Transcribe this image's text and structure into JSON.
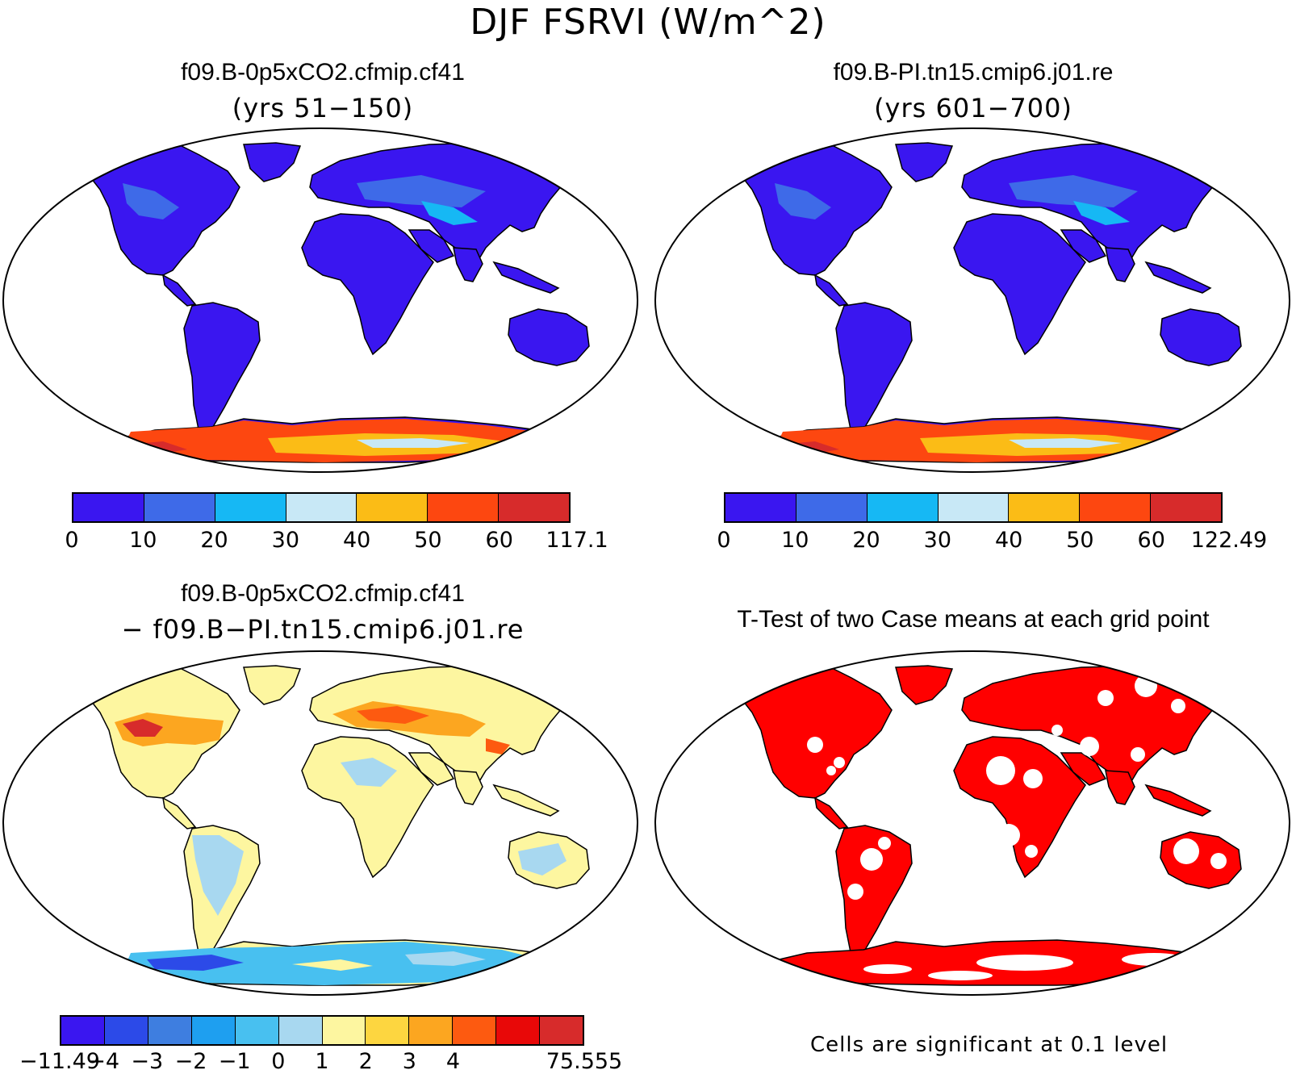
{
  "title": "DJF FSRVI (W/m^2)",
  "panels": [
    {
      "id": "top-left",
      "title": "f09.B-0p5xCO2.cfmip.cf41",
      "subtitle": "(yrs 51−150)"
    },
    {
      "id": "top-right",
      "title": "f09.B-PI.tn15.cmip6.j01.re",
      "subtitle": "(yrs 601−700)"
    },
    {
      "id": "bottom-left",
      "title": "f09.B-0p5xCO2.cfmip.cf41",
      "subtitle": "− f09.B−PI.tn15.cmip6.j01.re"
    },
    {
      "id": "bottom-right",
      "title": "T-Test of two Case means at each grid point",
      "subtitle": ""
    }
  ],
  "colorbars": {
    "top_left": {
      "colors": [
        "#3a16f0",
        "#3e6ae8",
        "#16b8f4",
        "#c8e8f6",
        "#fbbc16",
        "#fd4710",
        "#d72b2b"
      ],
      "labels": [
        "0",
        "10",
        "20",
        "30",
        "40",
        "50",
        "60",
        "117.1"
      ]
    },
    "top_right": {
      "colors": [
        "#3a16f0",
        "#3e6ae8",
        "#16b8f4",
        "#c8e8f6",
        "#fbbc16",
        "#fd4710",
        "#d72b2b"
      ],
      "labels": [
        "0",
        "10",
        "20",
        "30",
        "40",
        "50",
        "60",
        "122.49"
      ]
    },
    "bottom_left": {
      "colors": [
        "#3a16f0",
        "#2c4ae8",
        "#3e7ee0",
        "#1e9ff0",
        "#48c0f0",
        "#a8d8f0",
        "#fdf6a0",
        "#fdd640",
        "#fca620",
        "#fd5a10",
        "#e80808",
        "#d72b2b"
      ],
      "labels": [
        "−11.49",
        "−4",
        "−3",
        "−2",
        "−1",
        "0",
        "1",
        "2",
        "3",
        "4",
        "75.555"
      ]
    }
  },
  "footnote": "Cells are significant at 0.1 level"
}
